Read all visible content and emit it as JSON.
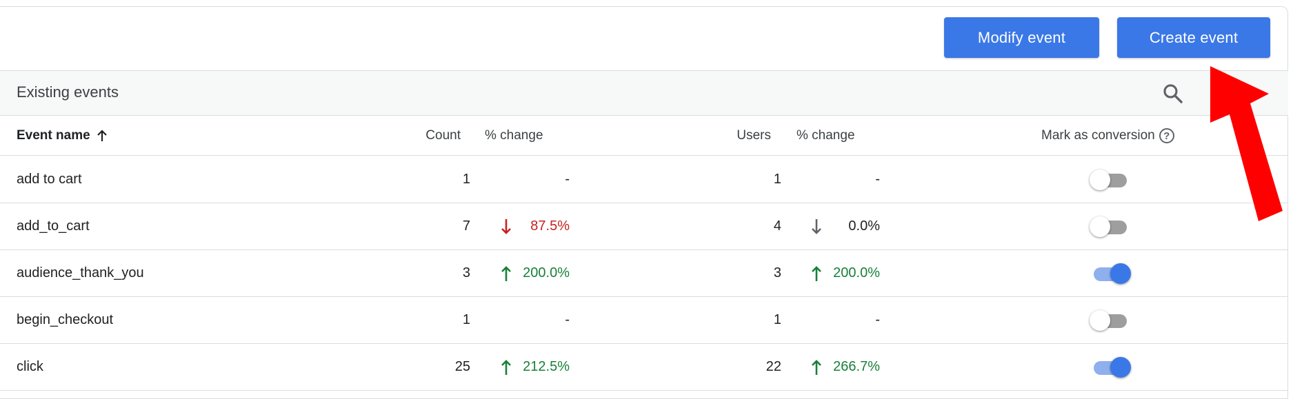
{
  "toolbar": {
    "modify_label": "Modify event",
    "create_label": "Create event",
    "title": "Existing events"
  },
  "table": {
    "headers": {
      "event_name": "Event name",
      "count": "Count",
      "count_change": "% change",
      "users": "Users",
      "users_change": "% change",
      "mark_conversion": "Mark as conversion",
      "help": "?"
    },
    "rows": [
      {
        "name": "add to cart",
        "count": "1",
        "count_change": "-",
        "count_trend": "none",
        "users": "1",
        "users_change": "-",
        "users_trend": "none",
        "conversion": false
      },
      {
        "name": "add_to_cart",
        "count": "7",
        "count_change": "87.5%",
        "count_trend": "down",
        "users": "4",
        "users_change": "0.0%",
        "users_trend": "flat-down",
        "conversion": false
      },
      {
        "name": "audience_thank_you",
        "count": "3",
        "count_change": "200.0%",
        "count_trend": "up",
        "users": "3",
        "users_change": "200.0%",
        "users_trend": "up",
        "conversion": true
      },
      {
        "name": "begin_checkout",
        "count": "1",
        "count_change": "-",
        "count_trend": "none",
        "users": "1",
        "users_change": "-",
        "users_trend": "none",
        "conversion": false
      },
      {
        "name": "click",
        "count": "25",
        "count_change": "212.5%",
        "count_trend": "up",
        "users": "22",
        "users_change": "266.7%",
        "users_trend": "up",
        "conversion": true
      }
    ]
  },
  "colors": {
    "primary": "#3b78e7",
    "up": "#188038",
    "down": "#c5221f",
    "annotation": "#ff0000"
  },
  "icons": [
    "search-icon",
    "more-vert-icon",
    "sort-up-arrow-icon",
    "help-icon",
    "trend-arrow-icon"
  ]
}
